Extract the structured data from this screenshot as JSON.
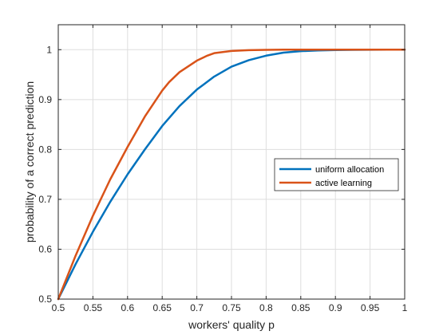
{
  "chart_data": {
    "type": "line",
    "xlabel": "workers' quality p",
    "ylabel": "probability of a correct prediction",
    "xlim": [
      0.5,
      1.0
    ],
    "ylim": [
      0.5,
      1.05
    ],
    "xticks": [
      0.5,
      0.55,
      0.6,
      0.65,
      0.7,
      0.75,
      0.8,
      0.85,
      0.9,
      0.95,
      1
    ],
    "xtick_labels": [
      "0.5",
      "0.55",
      "0.6",
      "0.65",
      "0.7",
      "0.75",
      "0.8",
      "0.85",
      "0.9",
      "0.95",
      "1"
    ],
    "yticks": [
      0.5,
      0.6,
      0.7,
      0.8,
      0.9,
      1.0
    ],
    "ytick_labels": [
      "0.5",
      "0.6",
      "0.7",
      "0.8",
      "0.9",
      "1"
    ],
    "grid": true,
    "legend_position": "right",
    "series": [
      {
        "name": "uniform allocation",
        "color": "#0072BD",
        "x": [
          0.5,
          0.525,
          0.55,
          0.575,
          0.6,
          0.625,
          0.65,
          0.675,
          0.7,
          0.725,
          0.75,
          0.775,
          0.8,
          0.825,
          0.85,
          0.875,
          0.9,
          0.925,
          0.95,
          0.975,
          1.0
        ],
        "y": [
          0.5,
          0.57,
          0.635,
          0.695,
          0.75,
          0.8,
          0.847,
          0.887,
          0.92,
          0.946,
          0.966,
          0.979,
          0.988,
          0.994,
          0.997,
          0.9985,
          0.9993,
          0.9997,
          0.9999,
          1.0,
          1.0
        ]
      },
      {
        "name": "active learning",
        "color": "#D95319",
        "x": [
          0.5,
          0.525,
          0.55,
          0.575,
          0.6,
          0.625,
          0.65,
          0.66,
          0.675,
          0.7,
          0.715,
          0.725,
          0.75,
          0.775,
          0.8,
          0.825,
          0.85,
          0.9,
          0.95,
          1.0
        ],
        "y": [
          0.5,
          0.587,
          0.667,
          0.74,
          0.805,
          0.866,
          0.918,
          0.935,
          0.955,
          0.978,
          0.988,
          0.993,
          0.9975,
          0.999,
          0.9997,
          1.0,
          1.0,
          1.0,
          1.0,
          1.0
        ]
      }
    ]
  }
}
